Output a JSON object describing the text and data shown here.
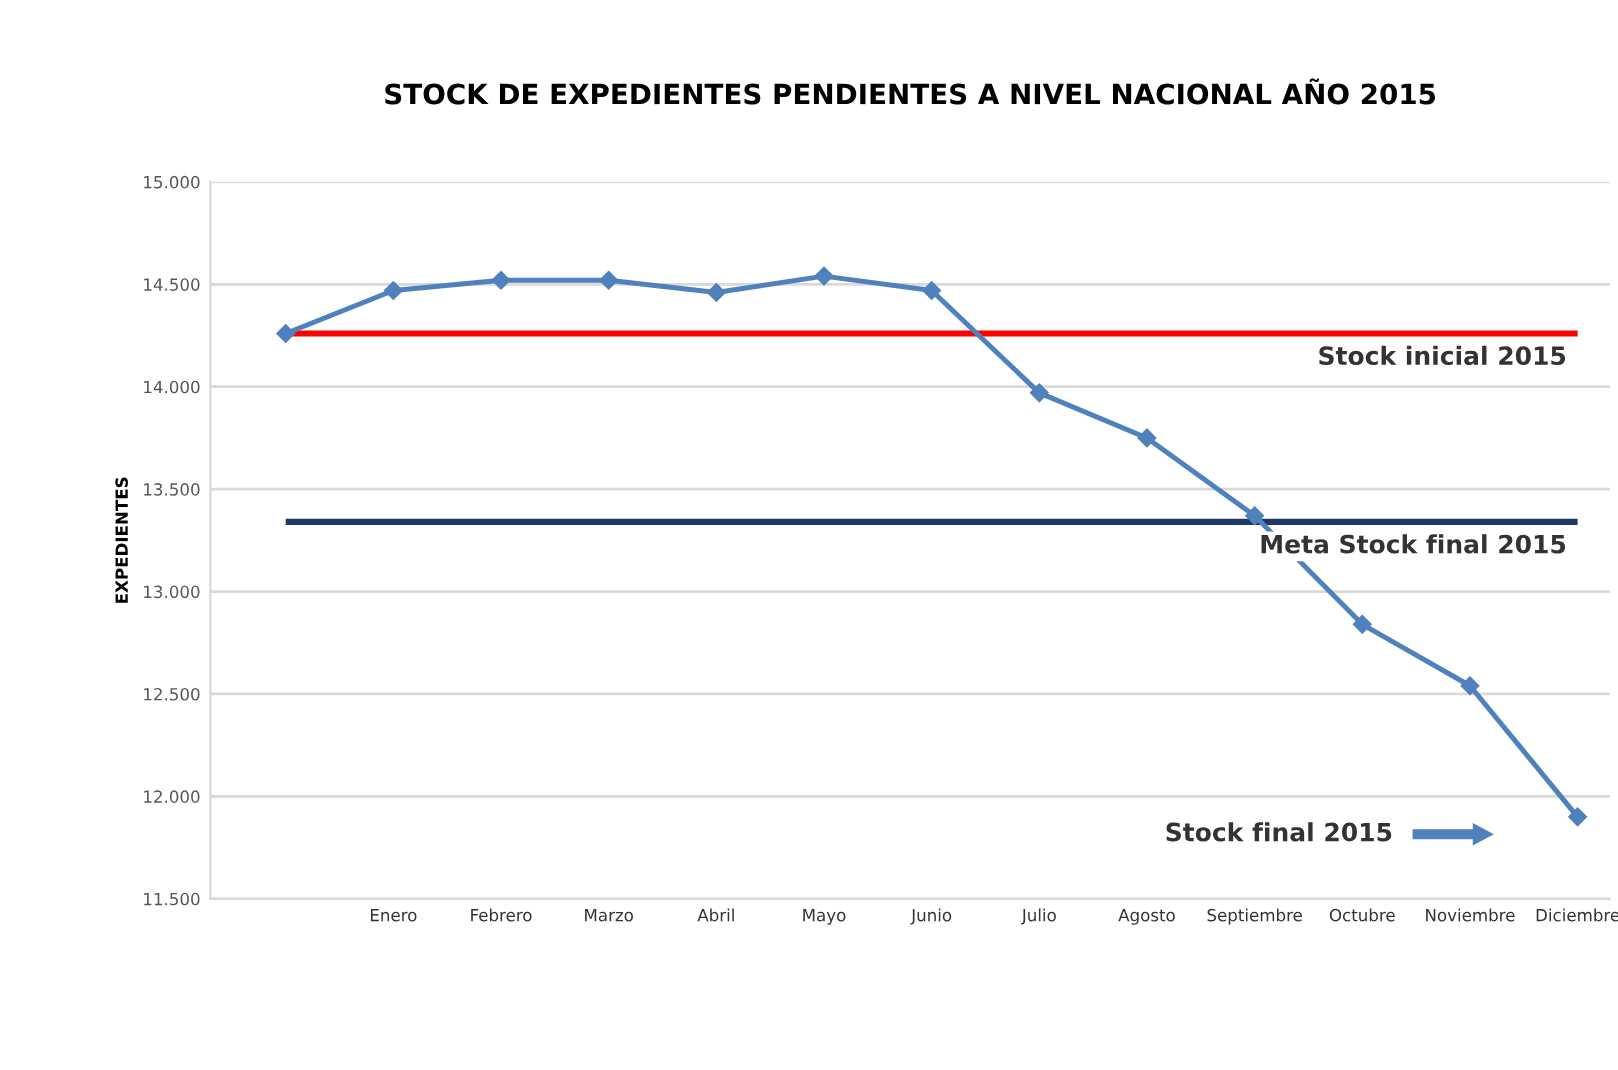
{
  "chart_data": {
    "type": "line",
    "title": "STOCK DE EXPEDIENTES PENDIENTES A NIVEL NACIONAL AÑO 2015",
    "ylabel": "EXPEDIENTES",
    "categories": [
      null,
      "Enero",
      "Febrero",
      "Marzo",
      "Abril",
      "Mayo",
      "Junio",
      "Julio",
      "Agosto",
      "Septiembre",
      "Octubre",
      "Noviembre",
      "Diciembre"
    ],
    "series": [
      {
        "color": "#4f81bd",
        "values": [
          14260,
          14470,
          14520,
          14520,
          14460,
          14540,
          14470,
          13970,
          13750,
          13370,
          12840,
          12540,
          11900
        ]
      }
    ],
    "ylim": [
      11500,
      15000
    ],
    "yticks": [
      {
        "value": 11500,
        "label": "11.500"
      },
      {
        "value": 12000,
        "label": "12.000"
      },
      {
        "value": 12500,
        "label": "12.500"
      },
      {
        "value": 13000,
        "label": "13.000"
      },
      {
        "value": 13500,
        "label": "13.500"
      },
      {
        "value": 14000,
        "label": "14.000"
      },
      {
        "value": 14500,
        "label": "14.500"
      },
      {
        "value": 15000,
        "label": "15.000"
      }
    ],
    "ref_lines": [
      {
        "axis": "y",
        "value": 14260,
        "label": "Stock inicial 2015",
        "color": "#ff0000"
      },
      {
        "axis": "y",
        "value": 13340,
        "label": "Meta Stock final 2015",
        "color": "#1f3864"
      }
    ],
    "annotations": [
      "Stock final 2015"
    ],
    "grid": "y",
    "legend": false,
    "marker": "diamond",
    "line_style": "solid"
  }
}
